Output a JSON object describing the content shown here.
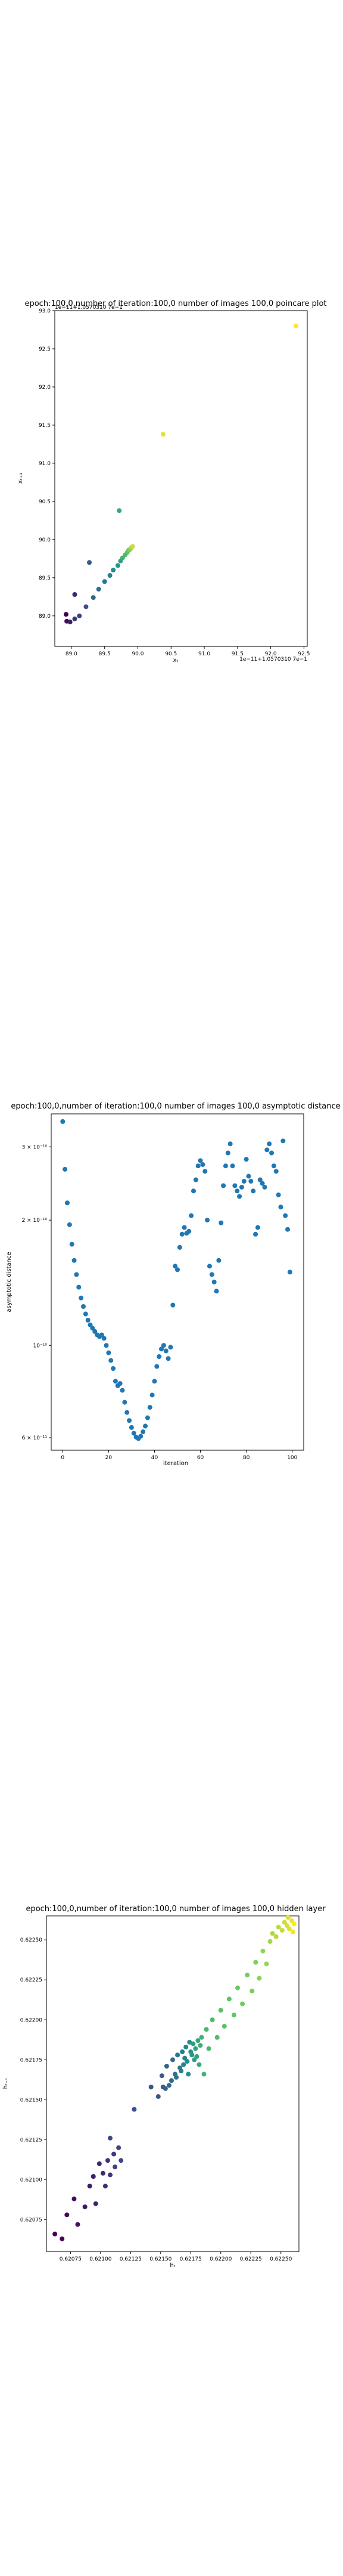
{
  "chart_data": [
    {
      "type": "scatter",
      "title": "epoch:100,0,number of iteration:100,0  number of images 100,0 poincare plot",
      "xlabel": "xₜ",
      "ylabel": "xₜ₊₁",
      "offset_label": "1e−11+1.0570310 7e−1",
      "offset_y_label": "1e−11+1.0570310 7e−1",
      "xlim": [
        88.75,
        92.55
      ],
      "ylim": [
        88.6,
        93.0
      ],
      "xticks": [
        89.0,
        89.5,
        90.0,
        90.5,
        91.0,
        91.5,
        92.0,
        92.5
      ],
      "xtick_labels": [
        "89.0",
        "89.5",
        "90.0",
        "90.5",
        "91.0",
        "91.5",
        "92.0",
        "92.5"
      ],
      "yticks": [
        89.0,
        89.5,
        90.0,
        90.5,
        91.0,
        91.5,
        92.0,
        92.5,
        93.0
      ],
      "ytick_labels": [
        "89.0",
        "89.5",
        "90.0",
        "90.5",
        "91.0",
        "91.5",
        "92.0",
        "92.5",
        "93.0"
      ],
      "colormap": "viridis",
      "points": [
        [
          88.92,
          89.02
        ],
        [
          88.93,
          88.93
        ],
        [
          88.98,
          88.92
        ],
        [
          89.05,
          89.28
        ],
        [
          89.05,
          88.96
        ],
        [
          89.12,
          89.0
        ],
        [
          89.22,
          89.12
        ],
        [
          89.27,
          89.7
        ],
        [
          89.33,
          89.24
        ],
        [
          89.41,
          89.35
        ],
        [
          89.5,
          89.45
        ],
        [
          89.58,
          89.53
        ],
        [
          89.63,
          89.6
        ],
        [
          89.7,
          89.66
        ],
        [
          89.74,
          89.72
        ],
        [
          89.72,
          90.38
        ],
        [
          89.77,
          89.76
        ],
        [
          89.81,
          89.8
        ],
        [
          89.84,
          89.83
        ],
        [
          89.86,
          89.86
        ],
        [
          89.88,
          89.87
        ],
        [
          89.9,
          89.89
        ],
        [
          89.91,
          89.9
        ],
        [
          89.92,
          89.91
        ],
        [
          90.38,
          91.38
        ],
        [
          92.38,
          92.8
        ]
      ]
    },
    {
      "type": "scatter",
      "title": "epoch:100,0,number of iteration:100,0  number of images 100,0 asymptotic distance",
      "xlabel": "iteration",
      "ylabel": "asymptotic distance",
      "yscale": "log",
      "xlim": [
        -5,
        105
      ],
      "ylim": [
        5.6e-11,
        3.6e-10
      ],
      "xticks": [
        0,
        20,
        40,
        60,
        80,
        100
      ],
      "xtick_labels": [
        "0",
        "20",
        "40",
        "60",
        "80",
        "100"
      ],
      "yticks": [
        6e-11,
        1e-10,
        2e-10,
        3e-10
      ],
      "ytick_labels": [
        "6 × 10⁻¹¹",
        "10⁻¹⁰",
        "2 × 10⁻¹⁰",
        "3 × 10⁻¹⁰"
      ],
      "color": "#1f77b4",
      "x": [
        0,
        1,
        2,
        3,
        4,
        5,
        6,
        7,
        8,
        9,
        10,
        11,
        12,
        13,
        14,
        15,
        16,
        17,
        18,
        19,
        20,
        21,
        22,
        23,
        24,
        25,
        26,
        27,
        28,
        29,
        30,
        31,
        32,
        33,
        34,
        35,
        36,
        37,
        38,
        39,
        40,
        41,
        42,
        43,
        44,
        45,
        46,
        47,
        48,
        49,
        50,
        51,
        52,
        53,
        54,
        55,
        56,
        57,
        58,
        59,
        60,
        61,
        62,
        63,
        64,
        65,
        66,
        67,
        68,
        69,
        70,
        71,
        72,
        73,
        74,
        75,
        76,
        77,
        78,
        79,
        80,
        81,
        82,
        83,
        84,
        85,
        86,
        87,
        88,
        89,
        90,
        91,
        92,
        93,
        94,
        95,
        96,
        97,
        98,
        99
      ],
      "y": [
        3.45e-10,
        2.65e-10,
        2.2e-10,
        1.95e-10,
        1.75e-10,
        1.6e-10,
        1.48e-10,
        1.38e-10,
        1.3e-10,
        1.24e-10,
        1.19e-10,
        1.15e-10,
        1.12e-10,
        1.1e-10,
        1.08e-10,
        1.06e-10,
        1.05e-10,
        1.06e-10,
        1.04e-10,
        1e-10,
        9.6e-11,
        9.2e-11,
        8.8e-11,
        8.2e-11,
        8e-11,
        8.1e-11,
        7.8e-11,
        7.3e-11,
        6.9e-11,
        6.6e-11,
        6.35e-11,
        6.15e-11,
        6.02e-11,
        5.97e-11,
        6.05e-11,
        6.2e-11,
        6.4e-11,
        6.7e-11,
        7.1e-11,
        7.6e-11,
        8.2e-11,
        8.9e-11,
        9.4e-11,
        9.8e-11,
        1e-10,
        9.7e-11,
        9.3e-11,
        9.9e-11,
        1.25e-10,
        1.55e-10,
        1.52e-10,
        1.72e-10,
        1.85e-10,
        1.92e-10,
        1.86e-10,
        1.88e-10,
        2.05e-10,
        2.35e-10,
        2.5e-10,
        2.7e-10,
        2.78e-10,
        2.72e-10,
        2.62e-10,
        2e-10,
        1.55e-10,
        1.48e-10,
        1.42e-10,
        1.35e-10,
        1.6e-10,
        1.97e-10,
        2.42e-10,
        2.7e-10,
        2.9e-10,
        3.05e-10,
        2.7e-10,
        2.42e-10,
        2.35e-10,
        2.28e-10,
        2.4e-10,
        2.48e-10,
        2.8e-10,
        2.55e-10,
        2.48e-10,
        2.35e-10,
        1.85e-10,
        1.92e-10,
        2.5e-10,
        2.45e-10,
        2.4e-10,
        2.95e-10,
        3.05e-10,
        2.9e-10,
        2.7e-10,
        2.62e-10,
        2.3e-10,
        2.15e-10,
        3.1e-10,
        2.05e-10,
        1.9e-10,
        1.5e-10
      ]
    },
    {
      "type": "scatter",
      "title": "epoch:100,0,number of iteration:100,0  number of images 100,0 hidden layer",
      "xlabel": "hₜ",
      "ylabel": "hₜ₊₁",
      "xlim": [
        0.62055,
        0.62265
      ],
      "ylim": [
        0.62055,
        0.62265
      ],
      "xticks": [
        0.62075,
        0.621,
        0.62125,
        0.6215,
        0.62175,
        0.622,
        0.62225,
        0.6225
      ],
      "xtick_labels": [
        "0.62075",
        "0.62100",
        "0.62125",
        "0.62150",
        "0.62175",
        "0.62200",
        "0.62225",
        "0.62250"
      ],
      "yticks": [
        0.62075,
        0.621,
        0.62125,
        0.6215,
        0.62175,
        0.622,
        0.62225,
        0.6225
      ],
      "ytick_labels": [
        "0.62075",
        "0.62100",
        "0.62125",
        "0.62150",
        "0.62175",
        "0.62200",
        "0.62225",
        "0.62250"
      ],
      "colormap": "viridis",
      "points": [
        [
          0.62062,
          0.62066
        ],
        [
          0.62068,
          0.62063
        ],
        [
          0.62072,
          0.62078
        ],
        [
          0.62078,
          0.62088
        ],
        [
          0.62081,
          0.62072
        ],
        [
          0.62087,
          0.62083
        ],
        [
          0.62091,
          0.62096
        ],
        [
          0.62094,
          0.62102
        ],
        [
          0.62096,
          0.62085
        ],
        [
          0.62099,
          0.6211
        ],
        [
          0.62102,
          0.62104
        ],
        [
          0.62104,
          0.62096
        ],
        [
          0.62106,
          0.62112
        ],
        [
          0.62108,
          0.62103
        ],
        [
          0.62111,
          0.62116
        ],
        [
          0.62112,
          0.62108
        ],
        [
          0.62115,
          0.6212
        ],
        [
          0.62117,
          0.62112
        ],
        [
          0.62108,
          0.62126
        ],
        [
          0.62128,
          0.62144
        ],
        [
          0.62142,
          0.62158
        ],
        [
          0.62148,
          0.62152
        ],
        [
          0.62151,
          0.62165
        ],
        [
          0.62152,
          0.62158
        ],
        [
          0.62154,
          0.62157
        ],
        [
          0.62155,
          0.62171
        ],
        [
          0.62157,
          0.62159
        ],
        [
          0.62159,
          0.62162
        ],
        [
          0.6216,
          0.62175
        ],
        [
          0.62162,
          0.62166
        ],
        [
          0.62163,
          0.62164
        ],
        [
          0.62164,
          0.62178
        ],
        [
          0.62166,
          0.6217
        ],
        [
          0.62167,
          0.62168
        ],
        [
          0.62168,
          0.6218
        ],
        [
          0.62169,
          0.62172
        ],
        [
          0.6217,
          0.62176
        ],
        [
          0.62171,
          0.62183
        ],
        [
          0.62172,
          0.62174
        ],
        [
          0.62173,
          0.62166
        ],
        [
          0.62174,
          0.62186
        ],
        [
          0.62175,
          0.6218
        ],
        [
          0.62176,
          0.62178
        ],
        [
          0.62177,
          0.62185
        ],
        [
          0.62178,
          0.62175
        ],
        [
          0.62179,
          0.62182
        ],
        [
          0.6218,
          0.62177
        ],
        [
          0.62181,
          0.62187
        ],
        [
          0.62182,
          0.62172
        ],
        [
          0.62183,
          0.62184
        ],
        [
          0.62184,
          0.62189
        ],
        [
          0.62186,
          0.62166
        ],
        [
          0.62188,
          0.62194
        ],
        [
          0.6219,
          0.62182
        ],
        [
          0.62193,
          0.622
        ],
        [
          0.62197,
          0.62189
        ],
        [
          0.622,
          0.62206
        ],
        [
          0.62203,
          0.62196
        ],
        [
          0.62207,
          0.62213
        ],
        [
          0.62211,
          0.62203
        ],
        [
          0.62214,
          0.6222
        ],
        [
          0.62218,
          0.6221
        ],
        [
          0.62222,
          0.62228
        ],
        [
          0.62226,
          0.62218
        ],
        [
          0.62229,
          0.62236
        ],
        [
          0.62232,
          0.62226
        ],
        [
          0.62235,
          0.62243
        ],
        [
          0.62238,
          0.62235
        ],
        [
          0.62241,
          0.62249
        ],
        [
          0.62243,
          0.62254
        ],
        [
          0.62246,
          0.62252
        ],
        [
          0.62248,
          0.62258
        ],
        [
          0.62251,
          0.62256
        ],
        [
          0.62253,
          0.62261
        ],
        [
          0.62255,
          0.62259
        ],
        [
          0.62256,
          0.62264
        ],
        [
          0.62257,
          0.62257
        ],
        [
          0.62259,
          0.62262
        ],
        [
          0.6226,
          0.62255
        ],
        [
          0.62261,
          0.6226
        ]
      ]
    }
  ]
}
